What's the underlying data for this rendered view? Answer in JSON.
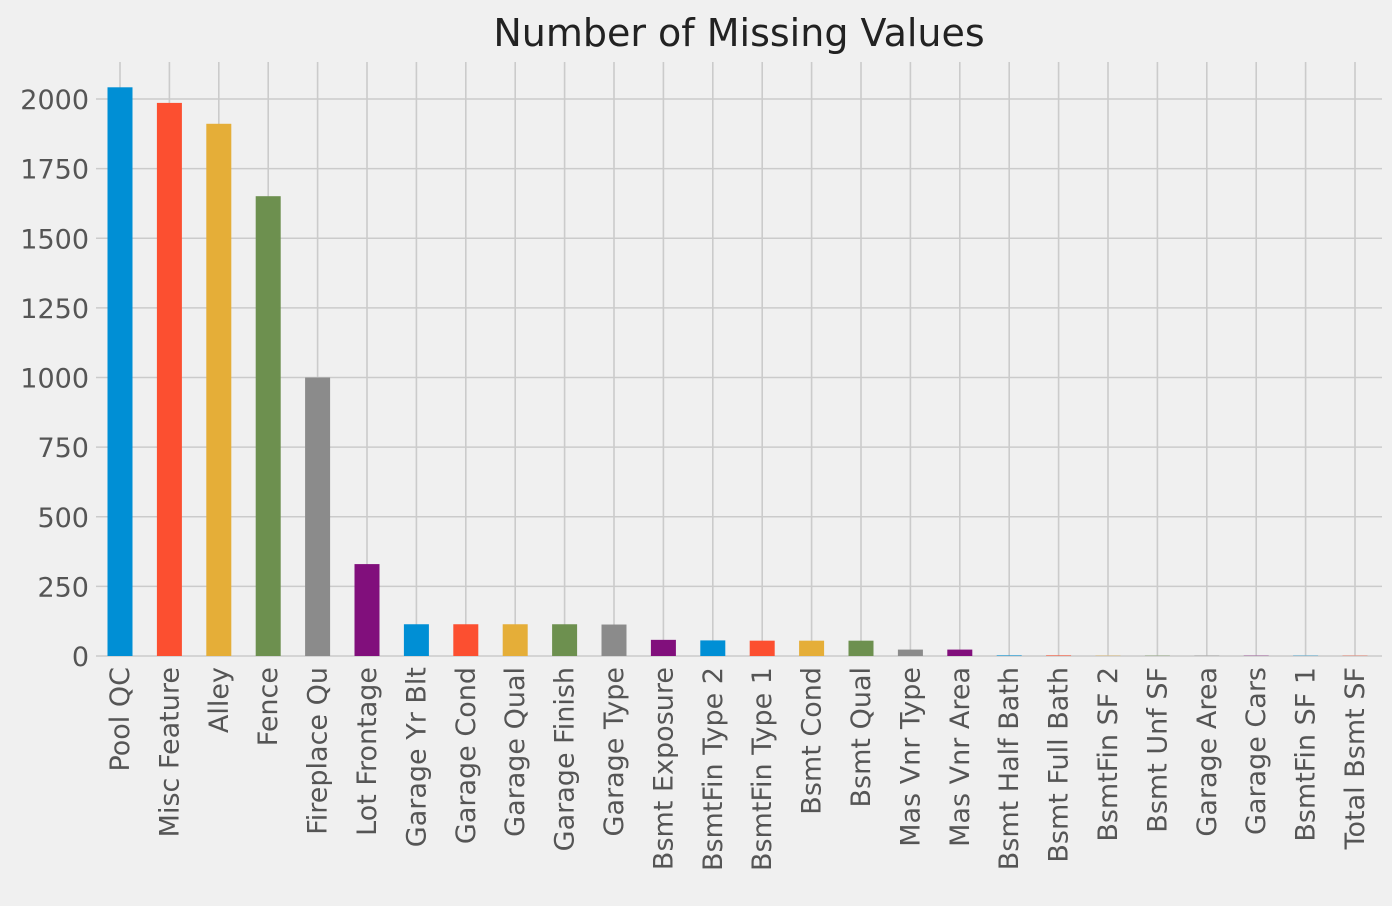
{
  "chart_data": {
    "type": "bar",
    "title": "Number of Missing Values",
    "xlabel": "",
    "ylabel": "",
    "ylim": [
      0,
      2100
    ],
    "yticks": [
      0,
      250,
      500,
      750,
      1000,
      1250,
      1500,
      1750,
      2000
    ],
    "grid": true,
    "legend": "none",
    "categories": [
      "Pool QC",
      "Misc Feature",
      "Alley",
      "Fence",
      "Fireplace Qu",
      "Lot Frontage",
      "Garage Yr Blt",
      "Garage Cond",
      "Garage Qual",
      "Garage Finish",
      "Garage Type",
      "Bsmt Exposure",
      "BsmtFin Type 2",
      "BsmtFin Type 1",
      "Bsmt Cond",
      "Bsmt Qual",
      "Mas Vnr Type",
      "Mas Vnr Area",
      "Bsmt Half Bath",
      "Bsmt Full Bath",
      "BsmtFin SF 2",
      "Bsmt Unf SF",
      "Garage Area",
      "Garage Cars",
      "BsmtFin SF 1",
      "Total Bsmt SF"
    ],
    "values": [
      2042,
      1986,
      1911,
      1651,
      1000,
      330,
      114,
      114,
      114,
      114,
      113,
      58,
      56,
      55,
      55,
      55,
      23,
      23,
      2,
      2,
      1,
      1,
      1,
      1,
      1,
      1
    ],
    "colors": [
      "#008fd5",
      "#fc4f30",
      "#e5ae38",
      "#6d904f",
      "#8b8b8b",
      "#810f7c"
    ]
  }
}
